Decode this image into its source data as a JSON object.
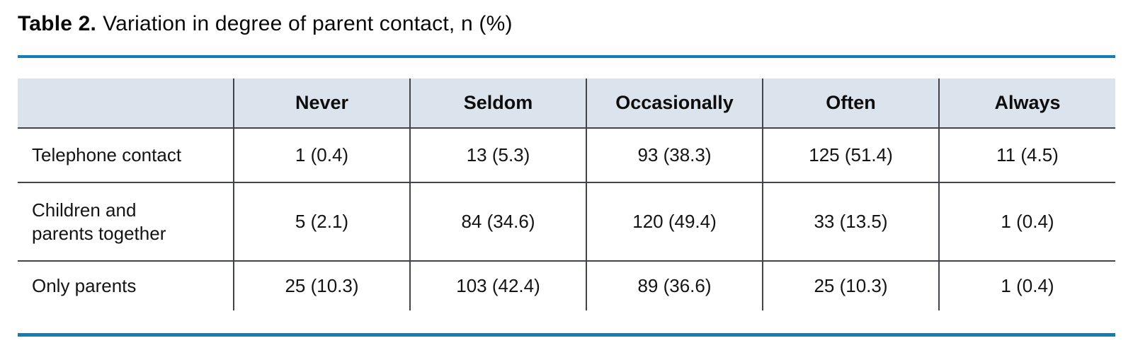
{
  "title": {
    "bold": "Table 2.",
    "rest": "Variation in degree of parent contact, n (%)"
  },
  "table": {
    "columns": [
      "",
      "Never",
      "Seldom",
      "Occasionally",
      "Often",
      "Always"
    ],
    "rows": [
      {
        "label": "Telephone contact",
        "values": [
          "1 (0.4)",
          "13 (5.3)",
          "93 (38.3)",
          "125 (51.4)",
          "11 (4.5)"
        ]
      },
      {
        "label": "Children and\nparents together",
        "values": [
          "5 (2.1)",
          "84 (34.6)",
          "120 (49.4)",
          "33 (13.5)",
          "1 (0.4)"
        ]
      },
      {
        "label": "Only parents",
        "values": [
          "25 (10.3)",
          "103 (42.4)",
          "89 (36.6)",
          "25 (10.3)",
          "1 (0.4)"
        ]
      }
    ]
  },
  "colors": {
    "accent_rule": "#0e80b5",
    "header_bg": "#dbe3ed",
    "grid_border": "#41454a",
    "text": "#141414"
  },
  "chart_data": {
    "type": "table",
    "title": "Table 2. Variation in degree of parent contact, n (%)",
    "columns": [
      "Never",
      "Seldom",
      "Occasionally",
      "Often",
      "Always"
    ],
    "rows": [
      {
        "label": "Telephone contact",
        "n": [
          1,
          13,
          93,
          125,
          11
        ],
        "percent": [
          0.4,
          5.3,
          38.3,
          51.4,
          4.5
        ]
      },
      {
        "label": "Children and parents together",
        "n": [
          5,
          84,
          120,
          33,
          1
        ],
        "percent": [
          2.1,
          34.6,
          49.4,
          13.5,
          0.4
        ]
      },
      {
        "label": "Only parents",
        "n": [
          25,
          103,
          89,
          25,
          1
        ],
        "percent": [
          10.3,
          42.4,
          36.6,
          10.3,
          0.4
        ]
      }
    ]
  }
}
